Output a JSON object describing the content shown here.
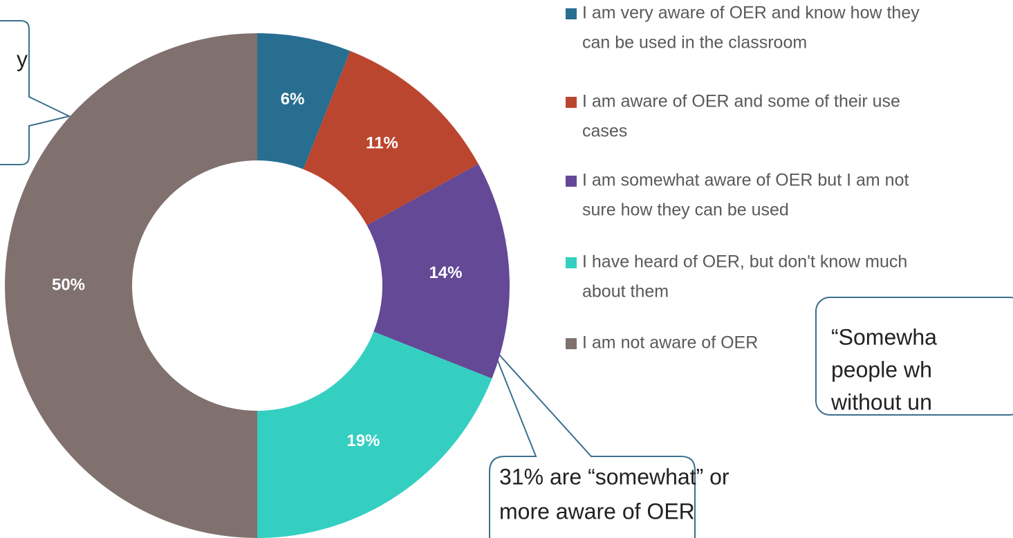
{
  "chart_data": {
    "type": "donut",
    "categories": [
      [
        "I am very aware of OER and know how they",
        "can be used in the classroom"
      ],
      [
        "I am aware of OER and some of their use",
        "cases"
      ],
      [
        "I am somewhat aware of OER but I am not",
        "sure how they can be used"
      ],
      [
        "I have heard of OER, but don't know much",
        "about them"
      ],
      [
        "I am not aware of OER"
      ]
    ],
    "values": [
      6,
      11,
      14,
      19,
      50
    ],
    "value_labels": [
      "6%",
      "11%",
      "14%",
      "19%",
      "50%"
    ],
    "colors": [
      "#286e91",
      "#bb4630",
      "#634996",
      "#35cfc1",
      "#80716f"
    ],
    "annotations": [
      [
        "y"
      ],
      [
        "31% are “somewhat” or",
        "more aware of OER"
      ],
      [
        "“Somewha",
        "people wh",
        "without un"
      ]
    ]
  }
}
